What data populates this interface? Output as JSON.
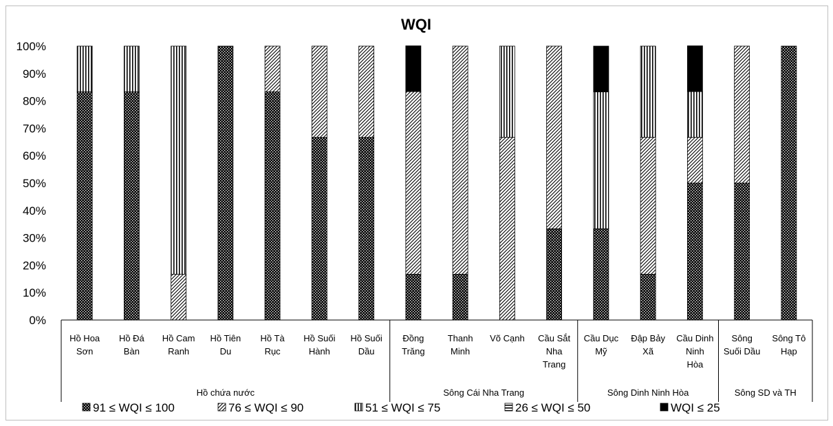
{
  "chart_data": {
    "type": "bar",
    "stacked": true,
    "title": "WQI",
    "ylim": [
      0,
      100
    ],
    "yticks": [
      "0%",
      "10%",
      "20%",
      "30%",
      "40%",
      "50%",
      "60%",
      "70%",
      "80%",
      "90%",
      "100%"
    ],
    "categories": [
      [
        "Hồ Hoa",
        "Sơn"
      ],
      [
        "Hồ Đá",
        "Bàn"
      ],
      [
        "Hồ Cam",
        "Ranh"
      ],
      [
        "Hồ Tiên",
        "Du"
      ],
      [
        "Hồ Tà",
        "Rục"
      ],
      [
        "Hồ Suối",
        "Hành"
      ],
      [
        "Hồ Suối",
        "Dầu"
      ],
      [
        "Đồng",
        "Trăng"
      ],
      [
        "Thanh",
        "Minh"
      ],
      [
        "Võ Cạnh"
      ],
      [
        "Cầu Sắt",
        "Nha",
        "Trang"
      ],
      [
        "Cầu Dục",
        "Mỹ"
      ],
      [
        "Đập Bảy",
        "Xã"
      ],
      [
        "Cầu Dinh",
        "Ninh",
        "Hòa"
      ],
      [
        "Sông",
        "Suối Dầu"
      ],
      [
        "Sông Tô",
        "Hạp"
      ]
    ],
    "groups": [
      {
        "label": "Hồ chứa nước",
        "start": 0,
        "end": 6
      },
      {
        "label": "Sông Cái Nha Trang",
        "start": 7,
        "end": 10
      },
      {
        "label": "Sông Dinh Ninh Hòa",
        "start": 11,
        "end": 13
      },
      {
        "label": "Sông SD và TH",
        "start": 14,
        "end": 15
      }
    ],
    "series": [
      {
        "name": "91 ≤ WQI ≤ 100",
        "pattern": "dots",
        "values": [
          83.3,
          83.3,
          0,
          100,
          83.3,
          66.7,
          66.7,
          16.7,
          16.7,
          0,
          33.3,
          33.3,
          16.7,
          50,
          50,
          100
        ]
      },
      {
        "name": "76 ≤ WQI ≤ 90",
        "pattern": "diag",
        "values": [
          0,
          0,
          16.7,
          0,
          16.7,
          33.3,
          33.3,
          66.7,
          83.3,
          66.7,
          66.7,
          0,
          50,
          16.7,
          50,
          0
        ]
      },
      {
        "name": "51 ≤ WQI ≤ 75",
        "pattern": "vert",
        "values": [
          16.7,
          16.7,
          83.3,
          0,
          0,
          0,
          0,
          0,
          0,
          33.3,
          0,
          50,
          33.3,
          16.7,
          0,
          0
        ]
      },
      {
        "name": "26 ≤ WQI ≤ 50",
        "pattern": "horiz",
        "values": [
          0,
          0,
          0,
          0,
          0,
          0,
          0,
          0,
          0,
          0,
          0,
          0,
          0,
          0,
          0,
          0
        ]
      },
      {
        "name": "WQI ≤ 25",
        "pattern": "solid",
        "values": [
          0,
          0,
          0,
          0,
          0,
          0,
          0,
          16.7,
          0,
          0,
          0,
          16.7,
          0,
          16.7,
          0,
          0
        ]
      }
    ],
    "legend": "bottom",
    "grid": false
  }
}
